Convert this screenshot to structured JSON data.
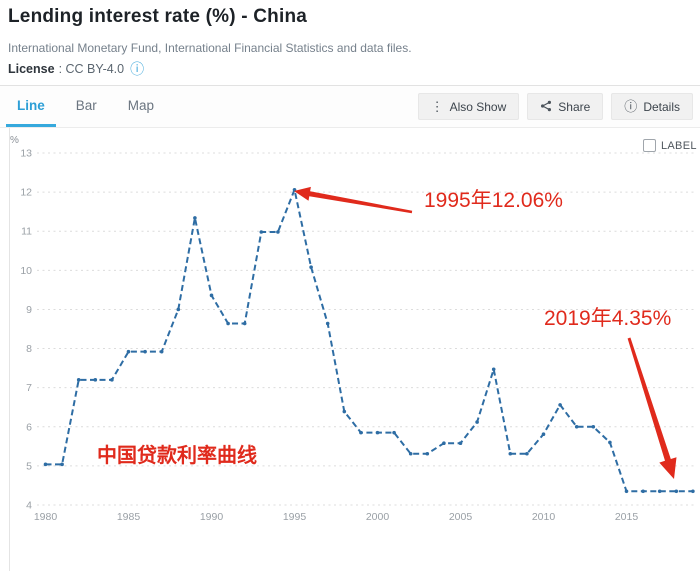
{
  "header": {
    "title": "Lending interest rate (%) - China",
    "source": "International Monetary Fund, International Financial Statistics and data files.",
    "license_label": "License",
    "license_value": ": CC BY-4.0",
    "license_info_icon": "info-circle-icon"
  },
  "toolbar": {
    "tabs": [
      {
        "label": "Line",
        "active": true
      },
      {
        "label": "Bar",
        "active": false
      },
      {
        "label": "Map",
        "active": false
      }
    ],
    "buttons": [
      {
        "icon": "kebab-menu-icon",
        "label": "Also Show"
      },
      {
        "icon": "share-icon",
        "label": "Share"
      },
      {
        "icon": "info-circle-icon",
        "label": "Details"
      }
    ]
  },
  "chart_controls": {
    "label_checkbox_text": "LABEL",
    "checked": false
  },
  "chart_data": {
    "type": "line",
    "title": "Lending interest rate (%) - China",
    "unit": "%",
    "x": [
      1980,
      1981,
      1982,
      1983,
      1984,
      1985,
      1986,
      1987,
      1988,
      1989,
      1990,
      1991,
      1992,
      1993,
      1994,
      1995,
      1996,
      1997,
      1998,
      1999,
      2000,
      2001,
      2002,
      2003,
      2004,
      2005,
      2006,
      2007,
      2008,
      2009,
      2010,
      2011,
      2012,
      2013,
      2014,
      2015,
      2016,
      2017,
      2018,
      2019
    ],
    "values": [
      5.04,
      5.04,
      7.2,
      7.2,
      7.2,
      7.92,
      7.92,
      7.92,
      9.0,
      11.34,
      9.36,
      8.64,
      8.64,
      10.98,
      10.98,
      12.06,
      10.08,
      8.64,
      6.39,
      5.85,
      5.85,
      5.85,
      5.31,
      5.31,
      5.58,
      5.58,
      6.12,
      7.47,
      5.31,
      5.31,
      5.81,
      6.56,
      6.0,
      6.0,
      5.6,
      4.35,
      4.35,
      4.35,
      4.35,
      4.35
    ],
    "ylim": [
      4,
      13
    ],
    "yticks": [
      13,
      12,
      11,
      10,
      9,
      8,
      7,
      6,
      5,
      4
    ],
    "xticks": [
      1980,
      1985,
      1990,
      1995,
      2000,
      2005,
      2010,
      2015
    ],
    "grid": "horizontal-dashed",
    "line_color": "#2e6da4",
    "annotation_color": "#e02a1c",
    "annotations": [
      {
        "text": "1995年12.06%",
        "year": 1995,
        "value": 12.06
      },
      {
        "text": "2019年4.35%",
        "year": 2019,
        "value": 4.35
      },
      {
        "text": "中国贷款利率曲线"
      }
    ]
  }
}
